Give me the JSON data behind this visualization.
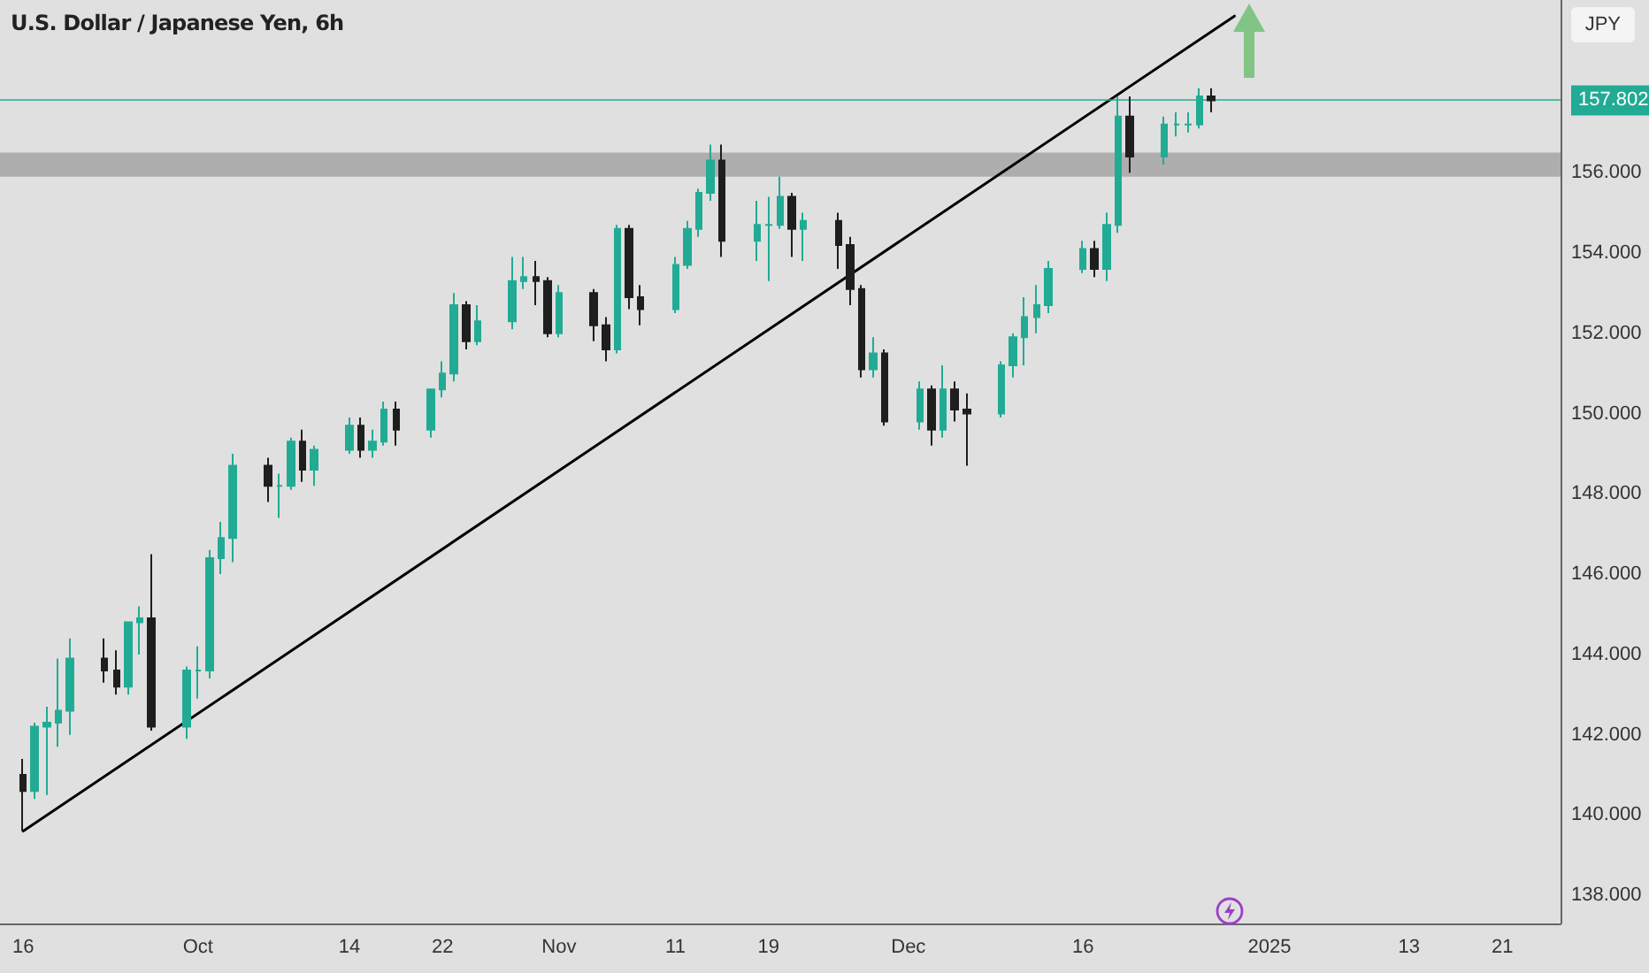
{
  "chart_data": {
    "type": "candlestick",
    "title": "U.S. Dollar / Japanese Yen, 6h",
    "ylabel": "JPY",
    "x": [
      "2024-09-16",
      "2024-09-17",
      "2024-09-18",
      "2024-09-19",
      "2024-09-20",
      "2024-09-23",
      "2024-09-24",
      "2024-09-25",
      "2024-09-26",
      "2024-09-27",
      "2024-09-30",
      "2024-10-01",
      "2024-10-02",
      "2024-10-03",
      "2024-10-04",
      "2024-10-07",
      "2024-10-08",
      "2024-10-09",
      "2024-10-10",
      "2024-10-11",
      "2024-10-14",
      "2024-10-15",
      "2024-10-16",
      "2024-10-17",
      "2024-10-18",
      "2024-10-21",
      "2024-10-22",
      "2024-10-23",
      "2024-10-24",
      "2024-10-25",
      "2024-10-28",
      "2024-10-29",
      "2024-10-30",
      "2024-10-31",
      "2024-11-01",
      "2024-11-04",
      "2024-11-05",
      "2024-11-06",
      "2024-11-07",
      "2024-11-08",
      "2024-11-11",
      "2024-11-12",
      "2024-11-13",
      "2024-11-14",
      "2024-11-15",
      "2024-11-18",
      "2024-11-19",
      "2024-11-20",
      "2024-11-21",
      "2024-11-22",
      "2024-11-25",
      "2024-11-26",
      "2024-11-27",
      "2024-11-28",
      "2024-11-29",
      "2024-12-02",
      "2024-12-03",
      "2024-12-04",
      "2024-12-05",
      "2024-12-06",
      "2024-12-09",
      "2024-12-10",
      "2024-12-11",
      "2024-12-12",
      "2024-12-13",
      "2024-12-16",
      "2024-12-17",
      "2024-12-18",
      "2024-12-19",
      "2024-12-20",
      "2024-12-23",
      "2024-12-24",
      "2024-12-25",
      "2024-12-26",
      "2024-12-27"
    ],
    "ohlc": [
      [
        141.0,
        141.4,
        139.6,
        140.6
      ],
      [
        140.6,
        142.3,
        140.4,
        142.2
      ],
      [
        142.2,
        142.7,
        140.5,
        142.3
      ],
      [
        142.3,
        143.9,
        141.7,
        142.6
      ],
      [
        142.6,
        144.4,
        142.0,
        143.9
      ],
      [
        143.9,
        144.4,
        143.3,
        143.6
      ],
      [
        143.6,
        144.1,
        143.0,
        143.2
      ],
      [
        143.2,
        144.8,
        143.0,
        144.8
      ],
      [
        144.8,
        145.2,
        144.0,
        144.9
      ],
      [
        144.9,
        146.5,
        142.1,
        142.2
      ],
      [
        142.2,
        143.7,
        141.9,
        143.6
      ],
      [
        143.6,
        144.2,
        142.9,
        143.6
      ],
      [
        143.6,
        146.6,
        143.4,
        146.4
      ],
      [
        146.4,
        147.3,
        146.0,
        146.9
      ],
      [
        146.9,
        149.0,
        146.3,
        148.7
      ],
      [
        148.7,
        148.9,
        147.8,
        148.2
      ],
      [
        148.2,
        148.5,
        147.4,
        148.2
      ],
      [
        148.2,
        149.4,
        148.1,
        149.3
      ],
      [
        149.3,
        149.6,
        148.3,
        148.6
      ],
      [
        148.6,
        149.2,
        148.2,
        149.1
      ],
      [
        149.1,
        149.9,
        149.0,
        149.7
      ],
      [
        149.7,
        149.9,
        148.9,
        149.1
      ],
      [
        149.1,
        149.6,
        148.9,
        149.3
      ],
      [
        149.3,
        150.3,
        149.2,
        150.1
      ],
      [
        150.1,
        150.3,
        149.2,
        149.6
      ],
      [
        149.6,
        150.6,
        149.4,
        150.6
      ],
      [
        150.6,
        151.3,
        150.4,
        151.0
      ],
      [
        151.0,
        153.0,
        150.8,
        152.7
      ],
      [
        152.7,
        152.8,
        151.6,
        151.8
      ],
      [
        151.8,
        152.7,
        151.7,
        152.3
      ],
      [
        152.3,
        153.9,
        152.1,
        153.3
      ],
      [
        153.3,
        153.9,
        153.1,
        153.4
      ],
      [
        153.4,
        153.8,
        152.7,
        153.3
      ],
      [
        153.3,
        153.4,
        151.9,
        152.0
      ],
      [
        152.0,
        153.2,
        151.9,
        153.0
      ],
      [
        153.0,
        153.1,
        151.8,
        152.2
      ],
      [
        152.2,
        152.4,
        151.3,
        151.6
      ],
      [
        151.6,
        154.7,
        151.5,
        154.6
      ],
      [
        154.6,
        154.7,
        152.6,
        152.9
      ],
      [
        152.9,
        153.2,
        152.2,
        152.6
      ],
      [
        152.6,
        153.9,
        152.5,
        153.7
      ],
      [
        153.7,
        154.8,
        153.6,
        154.6
      ],
      [
        154.6,
        155.6,
        154.4,
        155.5
      ],
      [
        155.5,
        156.7,
        155.3,
        156.3
      ],
      [
        156.3,
        156.7,
        153.9,
        154.3
      ],
      [
        154.3,
        155.3,
        153.8,
        154.7
      ],
      [
        154.7,
        155.4,
        153.3,
        154.7
      ],
      [
        154.7,
        155.9,
        154.6,
        155.4
      ],
      [
        155.4,
        155.5,
        153.9,
        154.6
      ],
      [
        154.6,
        155.0,
        153.8,
        154.8
      ],
      [
        154.8,
        155.0,
        153.6,
        154.2
      ],
      [
        154.2,
        154.4,
        152.7,
        153.1
      ],
      [
        153.1,
        153.2,
        150.9,
        151.1
      ],
      [
        151.1,
        151.9,
        150.9,
        151.5
      ],
      [
        151.5,
        151.6,
        149.7,
        149.8
      ],
      [
        149.8,
        150.8,
        149.6,
        150.6
      ],
      [
        150.6,
        150.7,
        149.2,
        149.6
      ],
      [
        149.6,
        151.2,
        149.4,
        150.6
      ],
      [
        150.6,
        150.8,
        149.8,
        150.1
      ],
      [
        150.1,
        150.5,
        148.7,
        150.0
      ],
      [
        150.0,
        151.3,
        149.9,
        151.2
      ],
      [
        151.2,
        152.0,
        150.9,
        151.9
      ],
      [
        151.9,
        152.9,
        151.2,
        152.4
      ],
      [
        152.4,
        153.2,
        152.0,
        152.7
      ],
      [
        152.7,
        153.8,
        152.5,
        153.6
      ],
      [
        153.6,
        154.3,
        153.5,
        154.1
      ],
      [
        154.1,
        154.3,
        153.4,
        153.6
      ],
      [
        153.6,
        155.0,
        153.3,
        154.7
      ],
      [
        154.7,
        157.9,
        154.5,
        157.4
      ],
      [
        157.4,
        157.9,
        156.0,
        156.4
      ],
      [
        156.4,
        157.4,
        156.2,
        157.2
      ],
      [
        157.2,
        157.5,
        156.9,
        157.2
      ],
      [
        157.2,
        157.5,
        157.0,
        157.2
      ],
      [
        157.2,
        158.1,
        157.1,
        157.9
      ],
      [
        157.9,
        158.1,
        157.5,
        157.8
      ]
    ],
    "colors": [
      "#1e1e1e",
      "#22ab94",
      "#22ab94",
      "#22ab94",
      "#22ab94",
      "#1e1e1e",
      "#1e1e1e",
      "#22ab94",
      "#22ab94",
      "#1e1e1e",
      "#22ab94",
      "#22ab94",
      "#22ab94",
      "#22ab94",
      "#22ab94",
      "#1e1e1e",
      "#22ab94",
      "#22ab94",
      "#1e1e1e",
      "#22ab94",
      "#22ab94",
      "#1e1e1e",
      "#22ab94",
      "#22ab94",
      "#1e1e1e",
      "#22ab94",
      "#22ab94",
      "#22ab94",
      "#1e1e1e",
      "#22ab94",
      "#22ab94",
      "#22ab94",
      "#1e1e1e",
      "#1e1e1e",
      "#22ab94",
      "#1e1e1e",
      "#1e1e1e",
      "#22ab94",
      "#1e1e1e",
      "#1e1e1e",
      "#22ab94",
      "#22ab94",
      "#22ab94",
      "#22ab94",
      "#1e1e1e",
      "#22ab94",
      "#22ab94",
      "#22ab94",
      "#1e1e1e",
      "#22ab94",
      "#1e1e1e",
      "#1e1e1e",
      "#1e1e1e",
      "#22ab94",
      "#1e1e1e",
      "#22ab94",
      "#1e1e1e",
      "#22ab94",
      "#1e1e1e",
      "#1e1e1e",
      "#22ab94",
      "#22ab94",
      "#22ab94",
      "#22ab94",
      "#22ab94",
      "#22ab94",
      "#1e1e1e",
      "#22ab94",
      "#22ab94",
      "#1e1e1e",
      "#22ab94",
      "#22ab94",
      "#22ab94",
      "#22ab94",
      "#1e1e1e"
    ],
    "series": [
      {
        "type": "line",
        "x": [
          "2024-09-16",
          "2024-12-29"
        ],
        "values": [
          139.6,
          159.9
        ],
        "color": "#000000"
      }
    ],
    "xlim": [
      "2024-09-14",
      "2025-01-26"
    ],
    "xticks": [
      {
        "value": "2024-09-16",
        "label": "16"
      },
      {
        "value": "2024-10-01",
        "label": "Oct"
      },
      {
        "value": "2024-10-14",
        "label": "14"
      },
      {
        "value": "2024-10-22",
        "label": "22"
      },
      {
        "value": "2024-11-01",
        "label": "Nov"
      },
      {
        "value": "2024-11-11",
        "label": "11"
      },
      {
        "value": "2024-11-19",
        "label": "19"
      },
      {
        "value": "2024-12-01",
        "label": "Dec"
      },
      {
        "value": "2024-12-16",
        "label": "16"
      },
      {
        "value": "2025-01-01",
        "label": "2025"
      },
      {
        "value": "2025-01-13",
        "label": "13"
      },
      {
        "value": "2025-01-21",
        "label": "21"
      }
    ],
    "ylim": [
      137.3,
      160.3
    ],
    "yticks": [
      {
        "value": 138,
        "label": "138.000"
      },
      {
        "value": 140,
        "label": "140.000"
      },
      {
        "value": 142,
        "label": "142.000"
      },
      {
        "value": 144,
        "label": "144.000"
      },
      {
        "value": 146,
        "label": "146.000"
      },
      {
        "value": 148,
        "label": "148.000"
      },
      {
        "value": 150,
        "label": "150.000"
      },
      {
        "value": 152,
        "label": "152.000"
      },
      {
        "value": 154,
        "label": "154.000"
      },
      {
        "value": 156,
        "label": "156.000"
      }
    ],
    "ref_lines": [
      {
        "axis": "y",
        "value": 157.802,
        "label": "157.802",
        "color": "#22ab94",
        "line_style": "solid"
      }
    ],
    "bands": [
      {
        "axis": "y",
        "from": 155.9,
        "to": 156.5,
        "color": "#a9a9a9"
      }
    ],
    "line_style": "solid"
  }
}
